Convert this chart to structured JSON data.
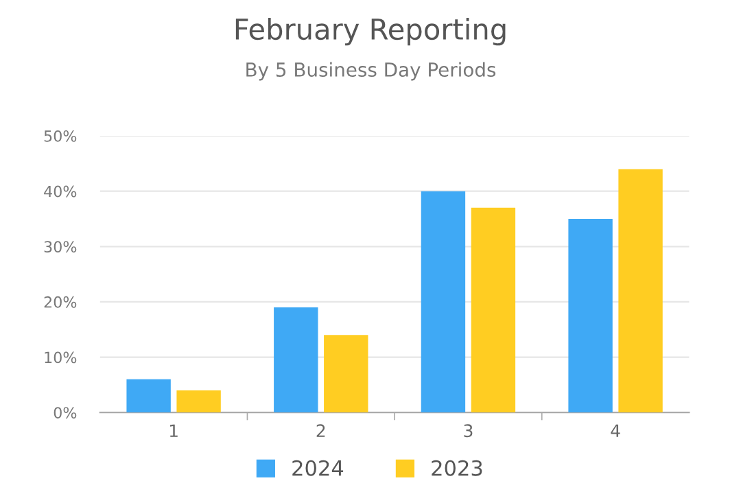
{
  "chart_data": {
    "type": "bar",
    "title": "February Reporting",
    "subtitle": "By 5 Business Day Periods",
    "categories": [
      "1",
      "2",
      "3",
      "4"
    ],
    "series": [
      {
        "name": "2024",
        "color": "#3fa9f5",
        "values": [
          6,
          19,
          40,
          35
        ]
      },
      {
        "name": "2023",
        "color": "#ffcd22",
        "values": [
          4,
          14,
          37,
          44
        ]
      }
    ],
    "ylim": [
      0,
      50
    ],
    "yticks": [
      {
        "value": 0,
        "label": "0%"
      },
      {
        "value": 10,
        "label": "10%"
      },
      {
        "value": 20,
        "label": "20%"
      },
      {
        "value": 30,
        "label": "30%"
      },
      {
        "value": 40,
        "label": "40%"
      },
      {
        "value": 50,
        "label": "50%"
      }
    ],
    "grid": "y",
    "legend": "bottom"
  }
}
